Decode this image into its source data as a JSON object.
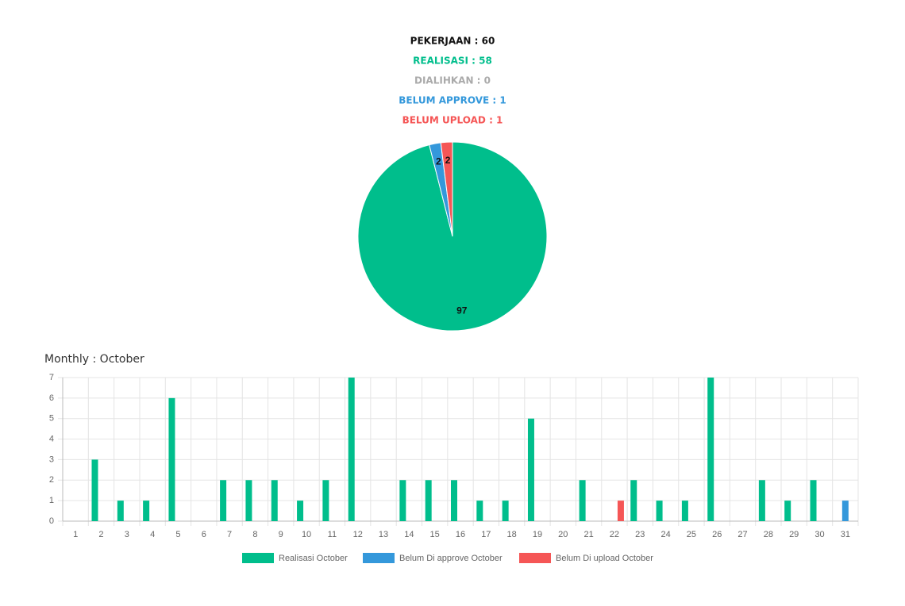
{
  "summary": [
    {
      "text": "PEKERJAAN : 60",
      "color": "#111111"
    },
    {
      "text": "REALISASI : 58",
      "color": "#00be8c"
    },
    {
      "text": "DIALIHKAN : 0",
      "color": "#aaaaaa"
    },
    {
      "text": "BELUM APPROVE : 1",
      "color": "#3498db"
    },
    {
      "text": "BELUM UPLOAD : 1",
      "color": "#f55656"
    }
  ],
  "chart_data": [
    {
      "type": "pie",
      "values": [
        97,
        2,
        2
      ],
      "colors": [
        "#00be8c",
        "#3498db",
        "#f55656"
      ]
    },
    {
      "type": "bar",
      "title": "Monthly : October",
      "categories": [
        1,
        2,
        3,
        4,
        5,
        6,
        7,
        8,
        9,
        10,
        11,
        12,
        13,
        14,
        15,
        16,
        17,
        18,
        19,
        20,
        21,
        22,
        23,
        24,
        25,
        26,
        27,
        28,
        29,
        30,
        31
      ],
      "series": [
        {
          "name": "Realisasi October",
          "color": "#00be8c",
          "values": [
            0,
            3,
            1,
            1,
            6,
            0,
            2,
            2,
            2,
            1,
            2,
            7,
            0,
            2,
            2,
            2,
            1,
            1,
            5,
            0,
            2,
            0,
            2,
            1,
            1,
            7,
            0,
            2,
            1,
            2,
            0
          ]
        },
        {
          "name": "Belum Di approve October",
          "color": "#3498db",
          "values": [
            0,
            0,
            0,
            0,
            0,
            0,
            0,
            0,
            0,
            0,
            0,
            0,
            0,
            0,
            0,
            0,
            0,
            0,
            0,
            0,
            0,
            0,
            0,
            0,
            0,
            0,
            0,
            0,
            0,
            0,
            1
          ]
        },
        {
          "name": "Belum Di upload October",
          "color": "#f55656",
          "values": [
            0,
            0,
            0,
            0,
            0,
            0,
            0,
            0,
            0,
            0,
            0,
            0,
            0,
            0,
            0,
            0,
            0,
            0,
            0,
            0,
            0,
            1,
            0,
            0,
            0,
            0,
            0,
            0,
            0,
            0,
            0
          ]
        }
      ],
      "ylim": [
        0,
        7
      ],
      "yticks": [
        0,
        1,
        2,
        3,
        4,
        5,
        6,
        7
      ],
      "grid": true
    }
  ]
}
